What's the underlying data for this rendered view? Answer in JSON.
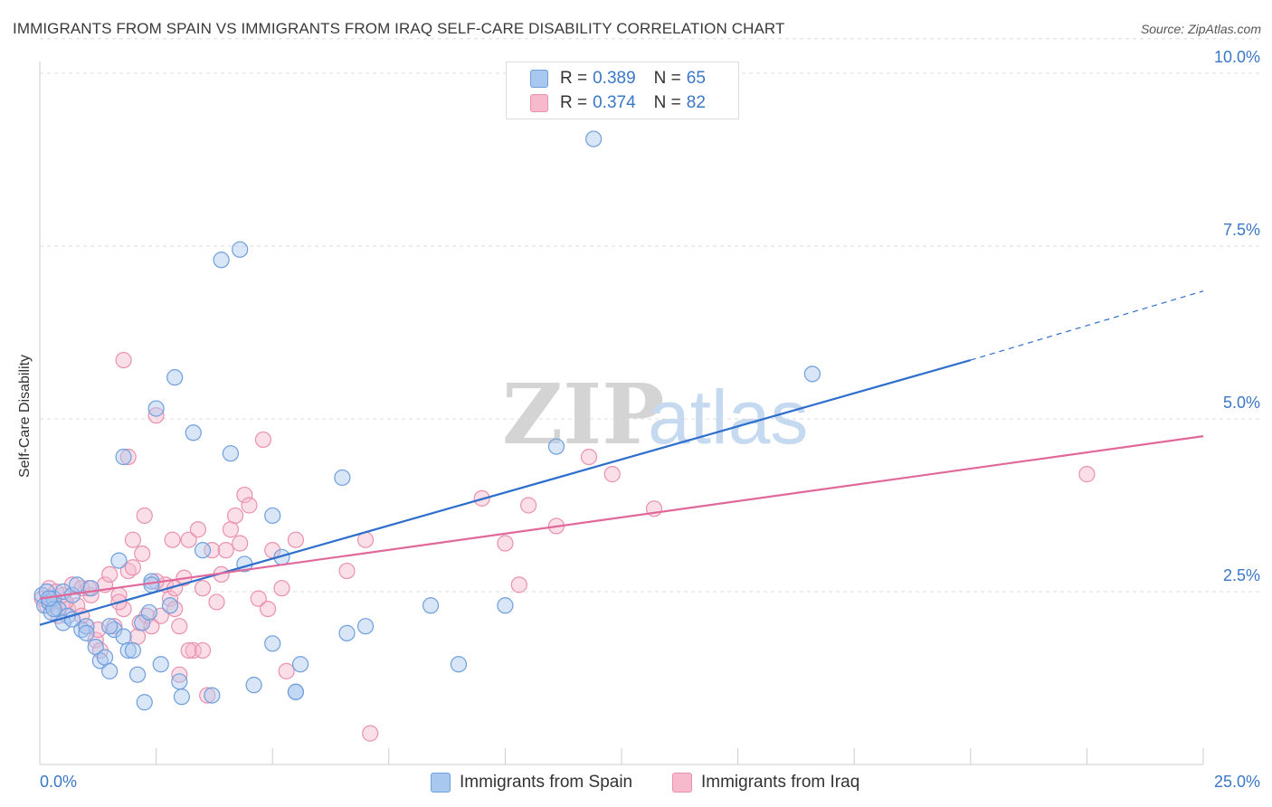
{
  "title": "IMMIGRANTS FROM SPAIN VS IMMIGRANTS FROM IRAQ SELF-CARE DISABILITY CORRELATION CHART",
  "source": "Source: ZipAtlas.com",
  "watermark": {
    "zip": "ZIP",
    "atlas": "atlas"
  },
  "colors": {
    "spain_fill": "#a8c8f0",
    "spain_stroke": "#6f9fdc",
    "spain_line": "#2f6fcc",
    "iraq_fill": "#f7b9cc",
    "iraq_stroke": "#e991ad",
    "iraq_line": "#e0689a",
    "tick_label": "#3a77c8",
    "grid": "#dddddd"
  },
  "legend": {
    "spain": {
      "r_label": "R =",
      "r_value": "0.389",
      "n_label": "N =",
      "n_value": "65"
    },
    "iraq": {
      "r_label": "R =",
      "r_value": "0.374",
      "n_label": "N =",
      "n_value": "82"
    }
  },
  "chart_data": {
    "type": "scatter",
    "title": "IMMIGRANTS FROM SPAIN VS IMMIGRANTS FROM IRAQ SELF-CARE DISABILITY CORRELATION CHART",
    "xlabel": "",
    "ylabel": "Self-Care Disability",
    "xlim": [
      0,
      25
    ],
    "ylim": [
      0,
      10.5
    ],
    "x_tick_labels": [
      "0.0%",
      "25.0%"
    ],
    "y_ticks": [
      2.5,
      5.0,
      7.5,
      10.0
    ],
    "y_tick_labels": [
      "2.5%",
      "5.0%",
      "7.5%",
      "10.0%"
    ],
    "grid": true,
    "legend_position": "top-center",
    "series": [
      {
        "name": "Immigrants from Spain",
        "trend": {
          "x": [
            0,
            20
          ],
          "y": [
            2.02,
            5.85
          ],
          "dashed_to": [
            25,
            6.85
          ]
        },
        "points": [
          [
            0.05,
            2.45
          ],
          [
            0.1,
            2.3
          ],
          [
            0.15,
            2.5
          ],
          [
            0.2,
            2.35
          ],
          [
            0.25,
            2.2
          ],
          [
            0.3,
            2.4
          ],
          [
            0.4,
            2.25
          ],
          [
            0.5,
            2.5
          ],
          [
            0.6,
            2.15
          ],
          [
            0.7,
            2.45
          ],
          [
            0.8,
            2.6
          ],
          [
            0.9,
            1.95
          ],
          [
            1.0,
            2.0
          ],
          [
            1.1,
            2.55
          ],
          [
            1.2,
            1.7
          ],
          [
            1.3,
            1.5
          ],
          [
            1.4,
            1.55
          ],
          [
            1.5,
            1.35
          ],
          [
            1.6,
            1.95
          ],
          [
            1.7,
            2.95
          ],
          [
            1.8,
            1.85
          ],
          [
            1.9,
            1.65
          ],
          [
            2.0,
            1.65
          ],
          [
            2.1,
            1.3
          ],
          [
            2.2,
            2.05
          ],
          [
            2.25,
            0.9
          ],
          [
            2.35,
            2.2
          ],
          [
            2.4,
            2.65
          ],
          [
            2.5,
            5.15
          ],
          [
            2.6,
            1.45
          ],
          [
            2.8,
            2.3
          ],
          [
            2.9,
            5.6
          ],
          [
            3.0,
            1.2
          ],
          [
            3.05,
            0.98
          ],
          [
            3.3,
            4.8
          ],
          [
            3.5,
            3.1
          ],
          [
            3.7,
            1.0
          ],
          [
            3.9,
            7.3
          ],
          [
            4.1,
            4.5
          ],
          [
            4.3,
            7.45
          ],
          [
            4.4,
            2.9
          ],
          [
            4.6,
            1.15
          ],
          [
            5.0,
            3.6
          ],
          [
            5.0,
            1.75
          ],
          [
            5.2,
            3.0
          ],
          [
            5.5,
            1.05
          ],
          [
            5.5,
            1.05
          ],
          [
            5.6,
            1.45
          ],
          [
            6.5,
            4.15
          ],
          [
            6.6,
            1.9
          ],
          [
            7.0,
            2.0
          ],
          [
            8.4,
            2.3
          ],
          [
            9.0,
            1.45
          ],
          [
            10.0,
            2.3
          ],
          [
            11.1,
            4.6
          ],
          [
            11.9,
            9.05
          ],
          [
            16.6,
            5.65
          ],
          [
            0.3,
            2.25
          ],
          [
            0.5,
            2.05
          ],
          [
            0.7,
            2.1
          ],
          [
            1.0,
            1.9
          ],
          [
            1.5,
            2.0
          ],
          [
            1.8,
            4.45
          ],
          [
            2.4,
            2.6
          ],
          [
            0.2,
            2.4
          ]
        ]
      },
      {
        "name": "Immigrants from Iraq",
        "trend": {
          "x": [
            0,
            25
          ],
          "y": [
            2.4,
            4.75
          ]
        },
        "points": [
          [
            0.05,
            2.4
          ],
          [
            0.15,
            2.3
          ],
          [
            0.2,
            2.55
          ],
          [
            0.3,
            2.35
          ],
          [
            0.4,
            2.15
          ],
          [
            0.5,
            2.45
          ],
          [
            0.6,
            2.25
          ],
          [
            0.7,
            2.6
          ],
          [
            0.8,
            2.3
          ],
          [
            0.9,
            2.55
          ],
          [
            1.0,
            2.0
          ],
          [
            1.1,
            2.45
          ],
          [
            1.2,
            1.8
          ],
          [
            1.3,
            1.65
          ],
          [
            1.4,
            2.6
          ],
          [
            1.5,
            2.75
          ],
          [
            1.6,
            2.0
          ],
          [
            1.7,
            2.45
          ],
          [
            1.8,
            2.25
          ],
          [
            1.9,
            2.8
          ],
          [
            2.0,
            3.25
          ],
          [
            2.1,
            1.85
          ],
          [
            2.15,
            2.05
          ],
          [
            2.2,
            3.05
          ],
          [
            2.25,
            3.6
          ],
          [
            2.3,
            2.15
          ],
          [
            2.4,
            2.0
          ],
          [
            2.5,
            5.05
          ],
          [
            2.6,
            2.15
          ],
          [
            2.7,
            2.6
          ],
          [
            2.8,
            2.4
          ],
          [
            2.85,
            3.25
          ],
          [
            2.9,
            2.25
          ],
          [
            3.0,
            2.0
          ],
          [
            3.1,
            2.7
          ],
          [
            3.2,
            3.25
          ],
          [
            3.3,
            1.65
          ],
          [
            3.4,
            3.4
          ],
          [
            3.5,
            2.55
          ],
          [
            3.6,
            1.0
          ],
          [
            3.7,
            3.1
          ],
          [
            3.8,
            2.35
          ],
          [
            3.9,
            2.75
          ],
          [
            4.0,
            3.1
          ],
          [
            4.1,
            3.4
          ],
          [
            4.2,
            3.6
          ],
          [
            4.3,
            3.2
          ],
          [
            4.4,
            3.9
          ],
          [
            4.5,
            3.75
          ],
          [
            4.7,
            2.4
          ],
          [
            4.8,
            4.7
          ],
          [
            4.9,
            2.25
          ],
          [
            5.0,
            3.1
          ],
          [
            5.2,
            2.55
          ],
          [
            5.3,
            1.35
          ],
          [
            5.5,
            3.25
          ],
          [
            6.6,
            2.8
          ],
          [
            7.0,
            3.25
          ],
          [
            7.1,
            0.45
          ],
          [
            9.5,
            3.85
          ],
          [
            10.0,
            3.2
          ],
          [
            10.3,
            2.6
          ],
          [
            10.5,
            3.75
          ],
          [
            11.1,
            3.45
          ],
          [
            11.8,
            4.45
          ],
          [
            12.3,
            4.2
          ],
          [
            13.2,
            3.7
          ],
          [
            22.5,
            4.2
          ],
          [
            1.8,
            5.85
          ],
          [
            1.9,
            4.45
          ],
          [
            2.0,
            2.85
          ],
          [
            2.5,
            2.65
          ],
          [
            3.0,
            1.3
          ],
          [
            3.2,
            1.65
          ],
          [
            3.5,
            1.65
          ],
          [
            0.9,
            2.15
          ],
          [
            1.05,
            2.55
          ],
          [
            1.25,
            1.95
          ],
          [
            0.35,
            2.5
          ],
          [
            0.55,
            2.35
          ],
          [
            1.7,
            2.35
          ],
          [
            2.9,
            2.55
          ]
        ]
      }
    ]
  },
  "bottom_legend": {
    "spain": "Immigrants from Spain",
    "iraq": "Immigrants from Iraq"
  }
}
